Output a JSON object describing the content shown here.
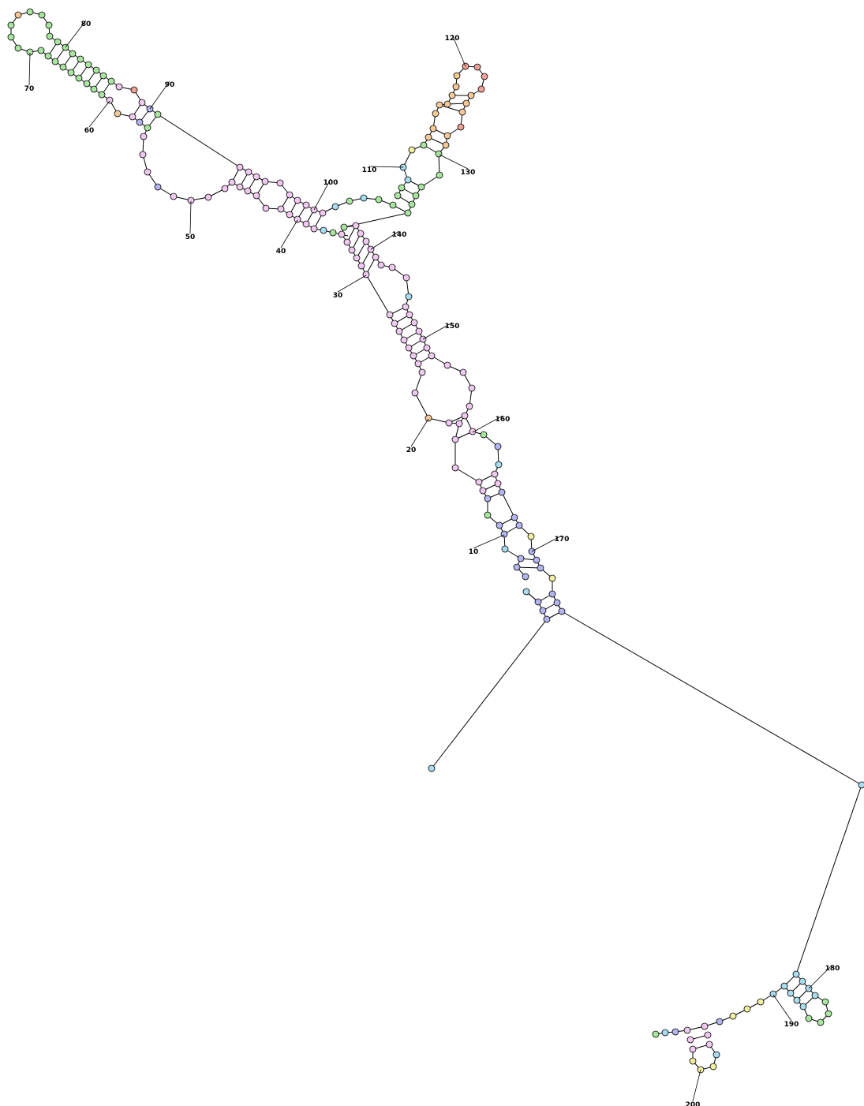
{
  "diagram": {
    "type": "rna-secondary-structure",
    "colors": {
      "pink": "#f0c8f0",
      "green": "#a8e6a0",
      "blue": "#b4b4f0",
      "cyan": "#a8dcf0",
      "orange": "#f5c896",
      "red": "#f0a096",
      "yellow": "#f0f0a0",
      "stroke": "#000000"
    },
    "position_labels": [
      "10",
      "20",
      "30",
      "40",
      "50",
      "60",
      "70",
      "80",
      "90",
      "100",
      "110",
      "120",
      "130",
      "140",
      "150",
      "160",
      "170",
      "180",
      "190",
      "200"
    ]
  }
}
